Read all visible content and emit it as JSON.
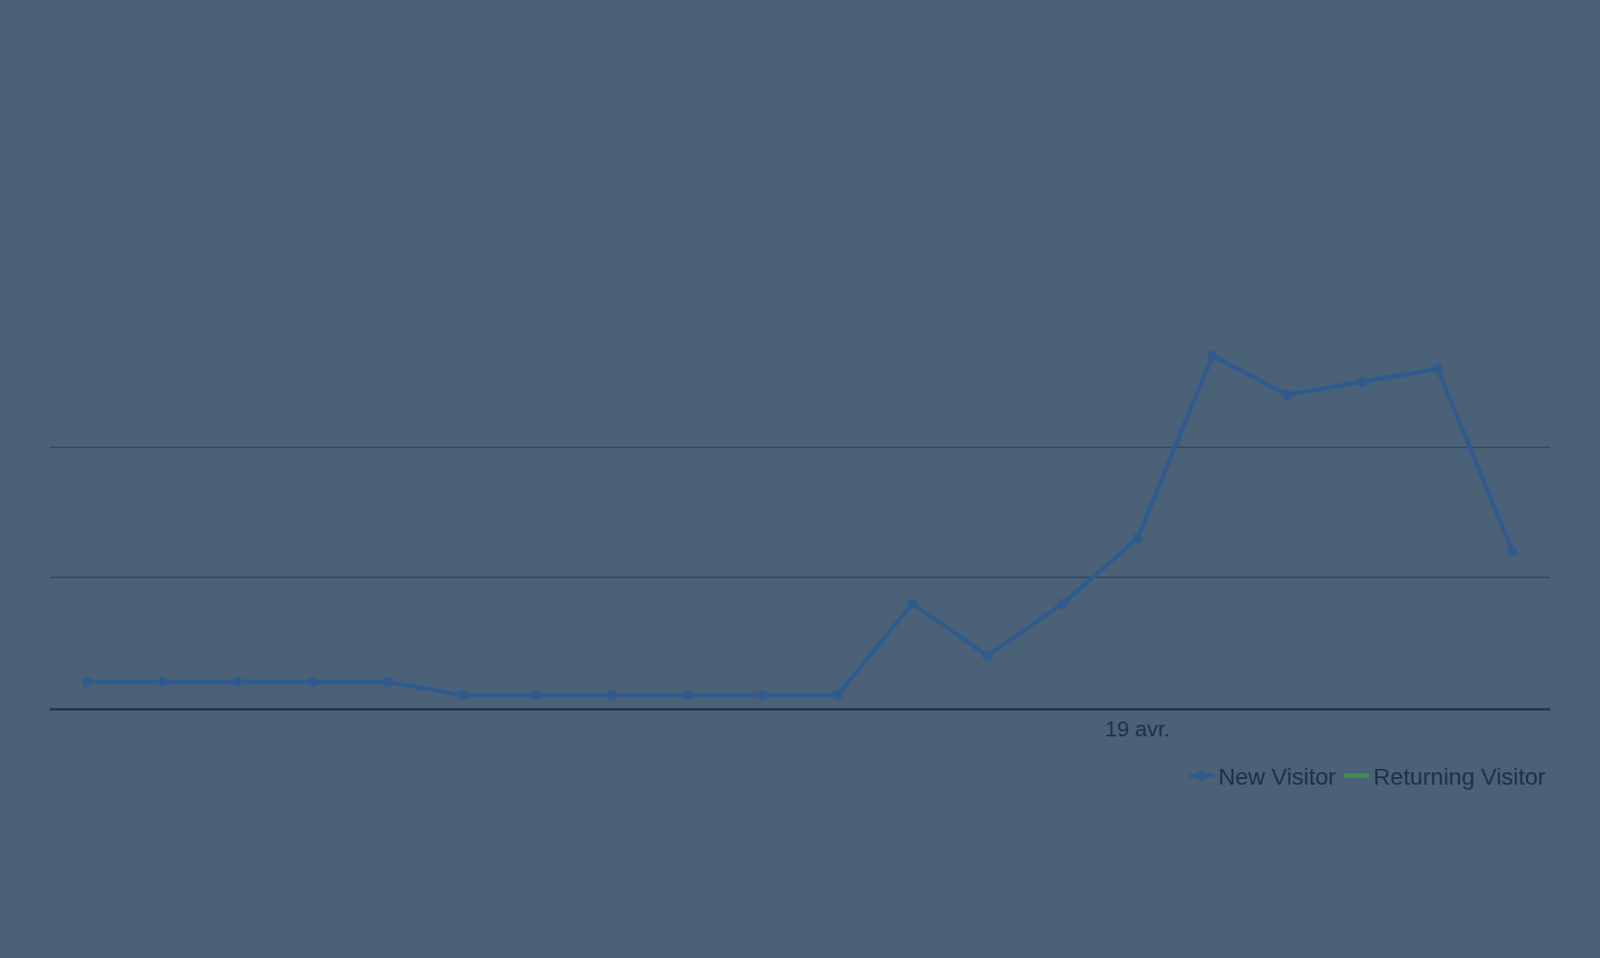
{
  "chart_data": {
    "type": "line",
    "categories": [
      null,
      null,
      null,
      null,
      null,
      null,
      null,
      null,
      null,
      null,
      null,
      null,
      null,
      null,
      "19 avr.",
      null,
      null,
      null,
      null,
      null
    ],
    "series": [
      {
        "name": "New Visitor",
        "color": "#2f5b8c",
        "marker": "circle",
        "values": [
          2,
          2,
          2,
          2,
          2,
          1,
          1,
          1,
          1,
          1,
          1,
          8,
          4,
          8,
          13,
          27,
          24,
          25,
          26,
          12
        ]
      },
      {
        "name": "Returning Visitor",
        "color": "#3f8f4f",
        "values": [
          null,
          null,
          null,
          null,
          null,
          null,
          null,
          null,
          null,
          null,
          null,
          null,
          null,
          null,
          null,
          null,
          null,
          null,
          null,
          null
        ]
      }
    ],
    "ylim": [
      0,
      30
    ],
    "yticks": [
      0,
      10,
      20,
      30
    ],
    "grid": true,
    "tick_labels": "x",
    "legend": "bottom right"
  }
}
